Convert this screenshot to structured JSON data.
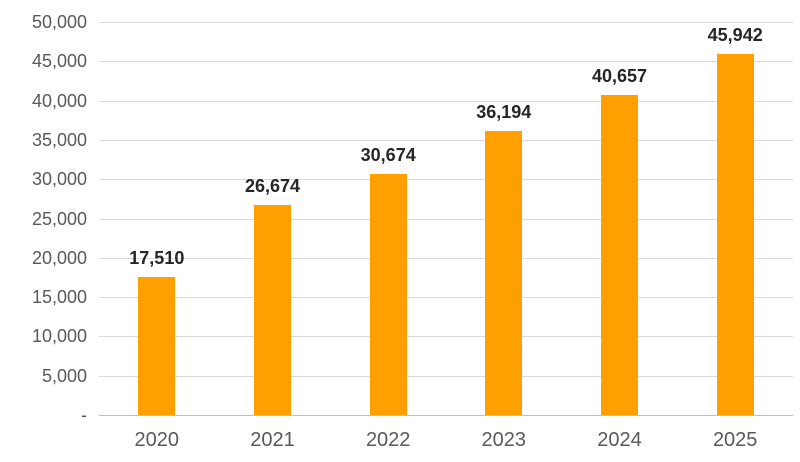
{
  "chart_data": {
    "type": "bar",
    "title": "",
    "xlabel": "",
    "ylabel": "",
    "categories": [
      "2020",
      "2021",
      "2022",
      "2023",
      "2024",
      "2025"
    ],
    "values": [
      17510,
      26674,
      30674,
      36194,
      40657,
      45942
    ],
    "value_labels": [
      "17,510",
      "26,674",
      "30,674",
      "36,194",
      "40,657",
      "45,942"
    ],
    "ylim": [
      0,
      50000
    ],
    "ytick_step": 5000,
    "ytick_labels": [
      "50,000",
      "45,000",
      "40,000",
      "35,000",
      "30,000",
      "25,000",
      "20,000",
      "15,000",
      "10,000",
      "5,000",
      "-"
    ],
    "grid": true,
    "legend_position": "none",
    "colors": {
      "bar": "#FFA000",
      "data_label": "#262626",
      "axis_text": "#595959",
      "gridline": "#D9D9D9",
      "axis_line": "#BFBFBF",
      "background": "#FFFFFF"
    }
  }
}
